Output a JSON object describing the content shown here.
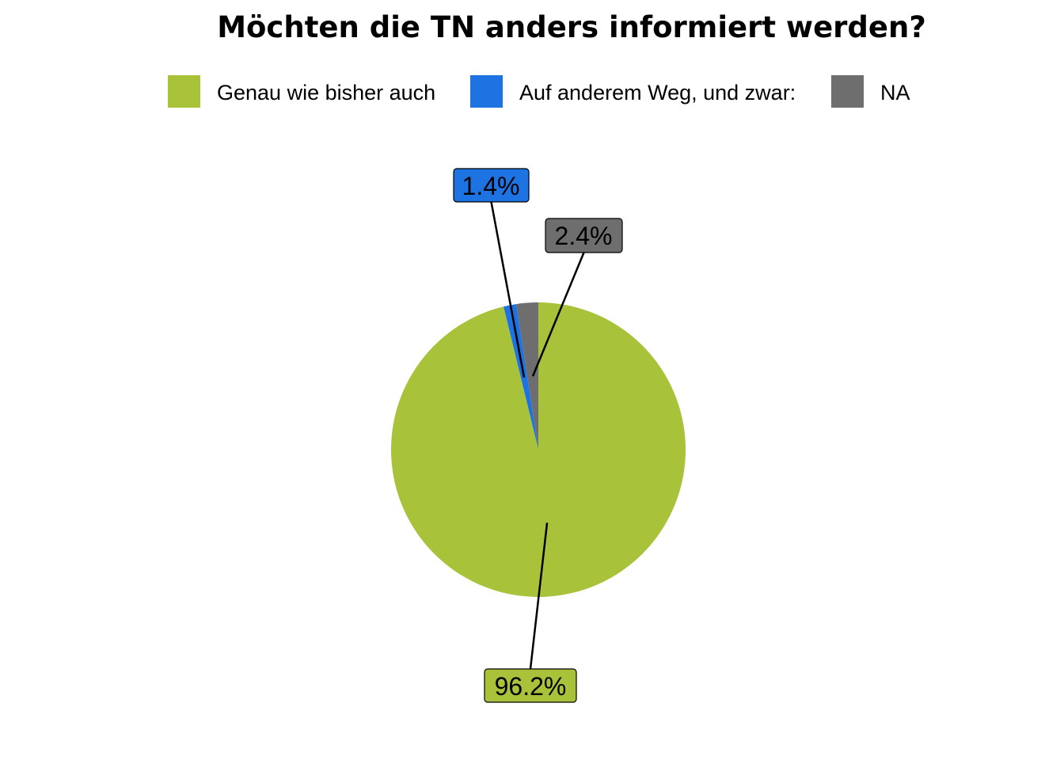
{
  "chart_data": {
    "type": "pie",
    "title": "Möchten die TN anders informiert werden?",
    "legend_position": "top",
    "categories": [
      "Genau wie bisher auch",
      "Auf anderem Weg, und zwar:",
      "NA"
    ],
    "values": [
      96.2,
      1.4,
      2.4
    ],
    "labels": [
      "96.2%",
      "1.4%",
      "2.4%"
    ],
    "colors": [
      "#a8c23a",
      "#1d73e2",
      "#6e6e6e"
    ]
  }
}
